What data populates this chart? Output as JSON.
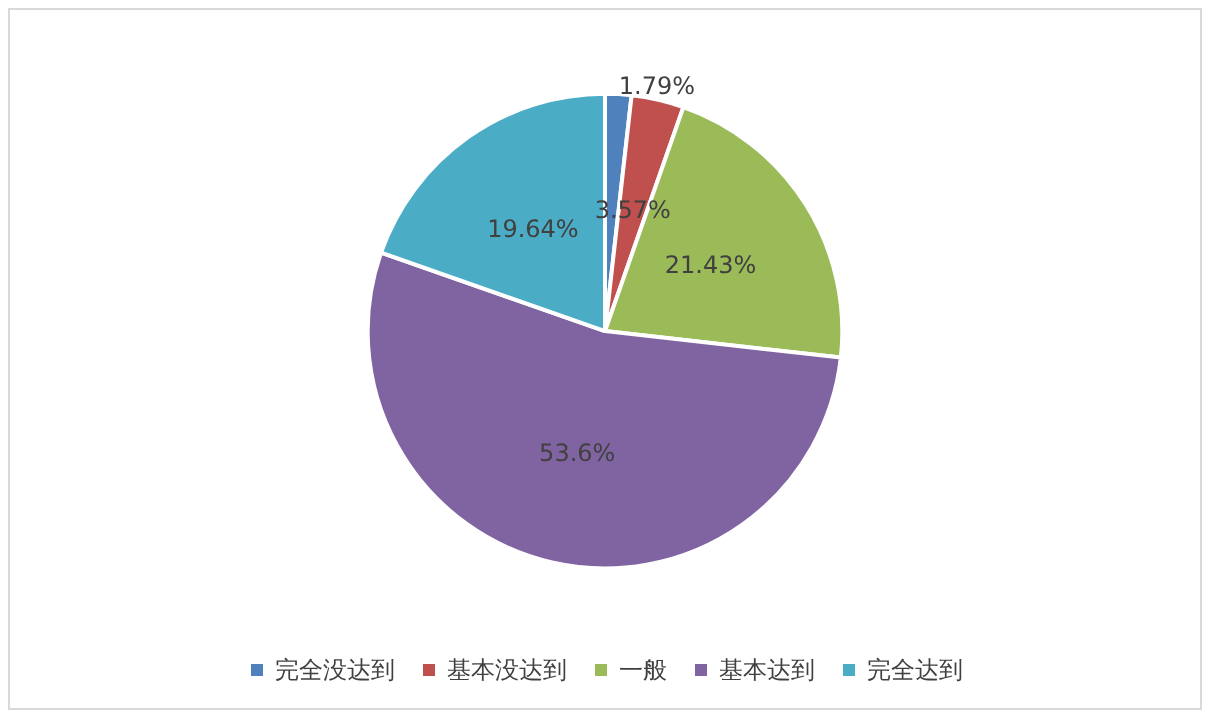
{
  "chart_data": {
    "type": "pie",
    "categories": [
      "完全没达到",
      "基本没达到",
      "一般",
      "基本达到",
      "完全达到"
    ],
    "values": [
      1.79,
      3.57,
      21.43,
      53.6,
      19.64
    ],
    "colors": [
      "#4f81bd",
      "#c0504d",
      "#9bbb59",
      "#8064a2",
      "#4bacc6"
    ],
    "value_labels": [
      "1.79%",
      "3.57%",
      "21.43%",
      "53.6%",
      "19.64%"
    ],
    "legend": "bottom"
  }
}
